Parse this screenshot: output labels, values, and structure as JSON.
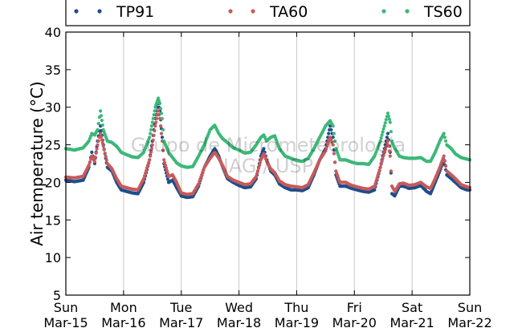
{
  "chart_data": {
    "type": "scatter",
    "ylabel": "Air temperature (°C)",
    "ylim": [
      5,
      40
    ],
    "yticks": [
      5,
      10,
      15,
      20,
      25,
      30,
      35,
      40
    ],
    "xlim": [
      0,
      7
    ],
    "xticks": [
      {
        "x": 0,
        "day": "Sun",
        "date": "Mar-15"
      },
      {
        "x": 1,
        "day": "Mon",
        "date": "Mar-16"
      },
      {
        "x": 2,
        "day": "Tue",
        "date": "Mar-17"
      },
      {
        "x": 3,
        "day": "Wed",
        "date": "Mar-18"
      },
      {
        "x": 4,
        "day": "Thu",
        "date": "Mar-19"
      },
      {
        "x": 5,
        "day": "Fri",
        "date": "Mar-20"
      },
      {
        "x": 6,
        "day": "Sat",
        "date": "Mar-21"
      },
      {
        "x": 7,
        "day": "Sun",
        "date": "Mar-22"
      }
    ],
    "grid": "vertical",
    "legend_position": "top",
    "watermark": [
      "Grupo de Micrometeorologia",
      "IAG / USP"
    ],
    "series": [
      {
        "name": "TP91",
        "color": "#1f4e8c",
        "points": [
          [
            0.0,
            20.3
          ],
          [
            0.15,
            20.1
          ],
          [
            0.3,
            20.3
          ],
          [
            0.4,
            22.0
          ],
          [
            0.45,
            24.0
          ],
          [
            0.5,
            22.5
          ],
          [
            0.55,
            25.5
          ],
          [
            0.6,
            27.5
          ],
          [
            0.65,
            25.0
          ],
          [
            0.72,
            22.0
          ],
          [
            0.8,
            21.5
          ],
          [
            0.88,
            20.0
          ],
          [
            0.96,
            19.0
          ],
          [
            1.05,
            18.8
          ],
          [
            1.15,
            18.6
          ],
          [
            1.25,
            18.5
          ],
          [
            1.35,
            20.0
          ],
          [
            1.45,
            23.0
          ],
          [
            1.5,
            25.5
          ],
          [
            1.55,
            28.5
          ],
          [
            1.6,
            30.5
          ],
          [
            1.63,
            29.5
          ],
          [
            1.67,
            26.0
          ],
          [
            1.7,
            22.5
          ],
          [
            1.78,
            20.0
          ],
          [
            1.85,
            20.3
          ],
          [
            1.92,
            19.3
          ],
          [
            2.0,
            18.2
          ],
          [
            2.1,
            18.0
          ],
          [
            2.2,
            18.1
          ],
          [
            2.3,
            19.5
          ],
          [
            2.4,
            22.0
          ],
          [
            2.5,
            23.5
          ],
          [
            2.58,
            24.5
          ],
          [
            2.65,
            23.5
          ],
          [
            2.72,
            22.0
          ],
          [
            2.8,
            20.5
          ],
          [
            2.9,
            20.0
          ],
          [
            3.0,
            19.6
          ],
          [
            3.1,
            19.3
          ],
          [
            3.2,
            19.4
          ],
          [
            3.3,
            20.5
          ],
          [
            3.38,
            23.5
          ],
          [
            3.43,
            24.5
          ],
          [
            3.48,
            23.0
          ],
          [
            3.55,
            21.5
          ],
          [
            3.62,
            21.0
          ],
          [
            3.7,
            19.8
          ],
          [
            3.8,
            19.3
          ],
          [
            3.9,
            19.0
          ],
          [
            4.0,
            19.0
          ],
          [
            4.1,
            18.9
          ],
          [
            4.2,
            19.3
          ],
          [
            4.3,
            21.0
          ],
          [
            4.4,
            23.0
          ],
          [
            4.5,
            24.5
          ],
          [
            4.58,
            27.5
          ],
          [
            4.63,
            26.0
          ],
          [
            4.68,
            21.0
          ],
          [
            4.75,
            19.5
          ],
          [
            4.85,
            19.5
          ],
          [
            4.95,
            19.2
          ],
          [
            5.05,
            19.0
          ],
          [
            5.15,
            18.8
          ],
          [
            5.25,
            18.7
          ],
          [
            5.35,
            19.0
          ],
          [
            5.45,
            22.0
          ],
          [
            5.52,
            24.5
          ],
          [
            5.58,
            26.5
          ],
          [
            5.62,
            24.0
          ],
          [
            5.65,
            18.5
          ],
          [
            5.7,
            18.2
          ],
          [
            5.78,
            19.5
          ],
          [
            5.85,
            19.5
          ],
          [
            5.95,
            19.2
          ],
          [
            6.05,
            19.3
          ],
          [
            6.15,
            19.6
          ],
          [
            6.25,
            18.8
          ],
          [
            6.32,
            18.5
          ],
          [
            6.4,
            20.0
          ],
          [
            6.48,
            21.5
          ],
          [
            6.55,
            23.0
          ],
          [
            6.6,
            21.0
          ],
          [
            6.68,
            20.5
          ],
          [
            6.75,
            20.0
          ],
          [
            6.85,
            19.3
          ],
          [
            6.95,
            19.0
          ],
          [
            7.0,
            19.0
          ]
        ]
      },
      {
        "name": "TA60",
        "color": "#c85a5a",
        "points": [
          [
            0.0,
            20.7
          ],
          [
            0.15,
            20.6
          ],
          [
            0.3,
            20.8
          ],
          [
            0.4,
            22.3
          ],
          [
            0.45,
            23.5
          ],
          [
            0.5,
            22.8
          ],
          [
            0.55,
            25.0
          ],
          [
            0.6,
            26.5
          ],
          [
            0.65,
            24.8
          ],
          [
            0.72,
            22.5
          ],
          [
            0.8,
            21.8
          ],
          [
            0.88,
            20.5
          ],
          [
            0.96,
            19.5
          ],
          [
            1.05,
            19.3
          ],
          [
            1.15,
            19.1
          ],
          [
            1.25,
            19.0
          ],
          [
            1.35,
            20.5
          ],
          [
            1.45,
            23.0
          ],
          [
            1.5,
            25.0
          ],
          [
            1.55,
            27.5
          ],
          [
            1.6,
            29.5
          ],
          [
            1.63,
            28.5
          ],
          [
            1.67,
            25.5
          ],
          [
            1.7,
            23.0
          ],
          [
            1.78,
            20.8
          ],
          [
            1.85,
            21.0
          ],
          [
            1.92,
            20.0
          ],
          [
            2.0,
            18.6
          ],
          [
            2.1,
            18.4
          ],
          [
            2.2,
            18.5
          ],
          [
            2.3,
            19.8
          ],
          [
            2.4,
            22.0
          ],
          [
            2.5,
            23.2
          ],
          [
            2.58,
            24.0
          ],
          [
            2.65,
            23.2
          ],
          [
            2.72,
            22.2
          ],
          [
            2.8,
            20.8
          ],
          [
            2.9,
            20.3
          ],
          [
            3.0,
            20.0
          ],
          [
            3.1,
            19.7
          ],
          [
            3.2,
            19.8
          ],
          [
            3.3,
            20.8
          ],
          [
            3.38,
            23.0
          ],
          [
            3.43,
            23.8
          ],
          [
            3.48,
            22.8
          ],
          [
            3.55,
            21.8
          ],
          [
            3.62,
            21.3
          ],
          [
            3.7,
            20.2
          ],
          [
            3.8,
            19.7
          ],
          [
            3.9,
            19.5
          ],
          [
            4.0,
            19.4
          ],
          [
            4.1,
            19.3
          ],
          [
            4.2,
            19.7
          ],
          [
            4.3,
            21.3
          ],
          [
            4.4,
            23.0
          ],
          [
            4.5,
            24.2
          ],
          [
            4.58,
            26.0
          ],
          [
            4.63,
            25.0
          ],
          [
            4.68,
            21.5
          ],
          [
            4.75,
            20.0
          ],
          [
            4.85,
            20.0
          ],
          [
            4.95,
            19.6
          ],
          [
            5.05,
            19.4
          ],
          [
            5.15,
            19.2
          ],
          [
            5.25,
            19.1
          ],
          [
            5.35,
            19.5
          ],
          [
            5.45,
            22.0
          ],
          [
            5.52,
            24.0
          ],
          [
            5.58,
            25.5
          ],
          [
            5.62,
            23.5
          ],
          [
            5.65,
            19.5
          ],
          [
            5.7,
            18.8
          ],
          [
            5.78,
            19.8
          ],
          [
            5.85,
            19.9
          ],
          [
            5.95,
            19.6
          ],
          [
            6.05,
            19.7
          ],
          [
            6.15,
            20.0
          ],
          [
            6.25,
            19.4
          ],
          [
            6.32,
            19.2
          ],
          [
            6.4,
            20.5
          ],
          [
            6.48,
            22.0
          ],
          [
            6.55,
            23.5
          ],
          [
            6.6,
            21.5
          ],
          [
            6.68,
            21.0
          ],
          [
            6.75,
            20.5
          ],
          [
            6.85,
            19.7
          ],
          [
            6.95,
            19.4
          ],
          [
            7.0,
            19.3
          ]
        ]
      },
      {
        "name": "TS60",
        "color": "#3cb878",
        "points": [
          [
            0.0,
            24.5
          ],
          [
            0.15,
            24.3
          ],
          [
            0.3,
            24.6
          ],
          [
            0.4,
            25.5
          ],
          [
            0.45,
            26.5
          ],
          [
            0.5,
            26.3
          ],
          [
            0.55,
            27.0
          ],
          [
            0.6,
            29.5
          ],
          [
            0.65,
            27.0
          ],
          [
            0.72,
            25.5
          ],
          [
            0.8,
            25.3
          ],
          [
            0.88,
            24.8
          ],
          [
            0.96,
            24.0
          ],
          [
            1.05,
            23.7
          ],
          [
            1.15,
            23.4
          ],
          [
            1.25,
            23.3
          ],
          [
            1.35,
            24.0
          ],
          [
            1.45,
            26.0
          ],
          [
            1.5,
            28.0
          ],
          [
            1.55,
            30.0
          ],
          [
            1.6,
            31.2
          ],
          [
            1.63,
            30.5
          ],
          [
            1.67,
            28.5
          ],
          [
            1.7,
            25.5
          ],
          [
            1.78,
            24.0
          ],
          [
            1.85,
            23.3
          ],
          [
            1.92,
            22.6
          ],
          [
            2.0,
            22.2
          ],
          [
            2.1,
            22.0
          ],
          [
            2.2,
            22.1
          ],
          [
            2.3,
            23.5
          ],
          [
            2.4,
            25.0
          ],
          [
            2.5,
            27.0
          ],
          [
            2.58,
            27.6
          ],
          [
            2.65,
            26.5
          ],
          [
            2.72,
            25.8
          ],
          [
            2.8,
            25.3
          ],
          [
            2.9,
            24.6
          ],
          [
            3.0,
            24.3
          ],
          [
            3.1,
            23.9
          ],
          [
            3.2,
            24.0
          ],
          [
            3.3,
            25.0
          ],
          [
            3.38,
            26.0
          ],
          [
            3.43,
            26.3
          ],
          [
            3.48,
            25.5
          ],
          [
            3.55,
            26.0
          ],
          [
            3.62,
            26.2
          ],
          [
            3.7,
            24.5
          ],
          [
            3.8,
            23.5
          ],
          [
            3.9,
            23.2
          ],
          [
            4.0,
            22.9
          ],
          [
            4.1,
            22.8
          ],
          [
            4.2,
            23.2
          ],
          [
            4.3,
            24.5
          ],
          [
            4.4,
            26.0
          ],
          [
            4.5,
            27.5
          ],
          [
            4.58,
            28.2
          ],
          [
            4.63,
            27.5
          ],
          [
            4.68,
            24.5
          ],
          [
            4.75,
            23.0
          ],
          [
            4.85,
            23.0
          ],
          [
            4.95,
            22.7
          ],
          [
            5.05,
            22.5
          ],
          [
            5.15,
            22.5
          ],
          [
            5.25,
            22.4
          ],
          [
            5.35,
            23.5
          ],
          [
            5.45,
            25.5
          ],
          [
            5.52,
            27.5
          ],
          [
            5.58,
            29.2
          ],
          [
            5.62,
            28.0
          ],
          [
            5.65,
            25.5
          ],
          [
            5.7,
            24.5
          ],
          [
            5.78,
            23.5
          ],
          [
            5.85,
            23.3
          ],
          [
            5.95,
            23.2
          ],
          [
            6.05,
            23.2
          ],
          [
            6.15,
            23.3
          ],
          [
            6.25,
            22.8
          ],
          [
            6.32,
            22.8
          ],
          [
            6.4,
            24.0
          ],
          [
            6.48,
            25.5
          ],
          [
            6.55,
            26.5
          ],
          [
            6.6,
            25.0
          ],
          [
            6.68,
            24.5
          ],
          [
            6.75,
            23.8
          ],
          [
            6.85,
            23.3
          ],
          [
            6.95,
            23.1
          ],
          [
            7.0,
            23.0
          ]
        ]
      }
    ]
  }
}
